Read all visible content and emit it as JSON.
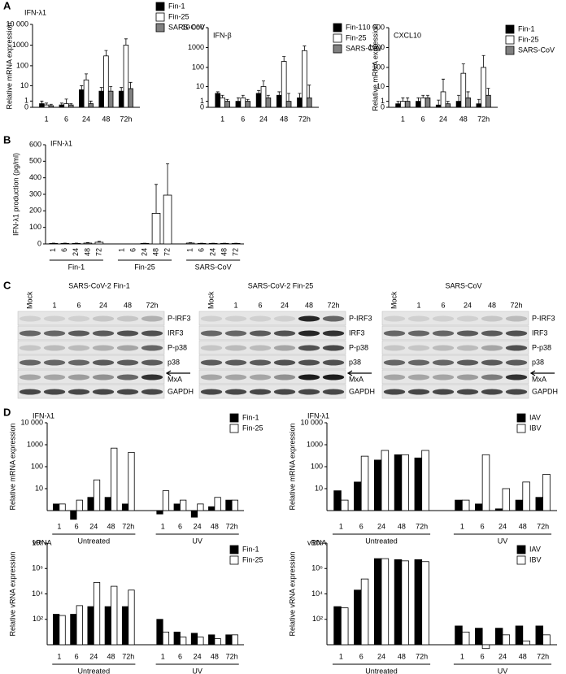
{
  "panels": [
    "A",
    "B",
    "C",
    "D"
  ],
  "chart_data": [
    {
      "type": "bar",
      "title": "IFN-λ1",
      "ylabel": "Relative mRNA expression",
      "yscale": "symlog",
      "ylim": [
        0,
        10000
      ],
      "yticks": [
        0,
        1,
        10,
        100,
        1000,
        {
          "value": 10000,
          "label": "10 000"
        }
      ],
      "categories": [
        "1",
        "6",
        "24",
        "48",
        "72h"
      ],
      "series": [
        {
          "name": "Fin-1",
          "color": "#000000",
          "values": [
            0.5,
            0.3,
            6,
            5,
            5
          ],
          "errors": [
            0.5,
            0.3,
            4,
            3,
            3
          ]
        },
        {
          "name": "Fin-25",
          "color": "#ffffff",
          "values": [
            0.3,
            0.5,
            20,
            300,
            1000
          ],
          "errors": [
            0.3,
            1,
            20,
            250,
            1000
          ]
        },
        {
          "name": "SARS-CoV",
          "color": "#808080",
          "values": [
            0.2,
            0.3,
            0.5,
            5,
            7
          ],
          "errors": [
            0.2,
            0.2,
            0.5,
            4,
            8
          ]
        }
      ]
    },
    {
      "type": "bar",
      "title": "IFN-β",
      "yscale": "symlog",
      "ylim": [
        0,
        10000
      ],
      "yticks": [
        0,
        1,
        10,
        100,
        1000,
        {
          "value": 10000,
          "label": "10 000"
        }
      ],
      "categories": [
        "1",
        "6",
        "24",
        "48",
        "72h"
      ],
      "series": [
        {
          "name": "Fin-1",
          "color": "#000000",
          "values": [
            4,
            1,
            4,
            3,
            2
          ],
          "errors": [
            1,
            1,
            2,
            2,
            2
          ]
        },
        {
          "name": "Fin-25",
          "color": "#ffffff",
          "values": [
            2,
            2,
            10,
            200,
            700
          ],
          "errors": [
            1,
            1,
            10,
            150,
            500
          ]
        },
        {
          "name": "SARS-CoV",
          "color": "#808080",
          "values": [
            1,
            1,
            2,
            1,
            2
          ],
          "errors": [
            0.5,
            0.5,
            1,
            3,
            10
          ]
        }
      ]
    },
    {
      "type": "bar",
      "title": "CXCL10",
      "ylabel": "Relative mRNA expression",
      "yscale": "symlog",
      "ylim": [
        0,
        10000
      ],
      "yticks": [
        0,
        1,
        10,
        100,
        1000,
        {
          "value": 10000,
          "label": "10 000"
        }
      ],
      "categories": [
        "1",
        "6",
        "24",
        "48",
        "72h"
      ],
      "series": [
        {
          "name": "Fin-1",
          "color": "#000000",
          "values": [
            0.5,
            1,
            0.3,
            1,
            0.5
          ],
          "errors": [
            0.5,
            1,
            1,
            2,
            1
          ]
        },
        {
          "name": "Fin-25",
          "color": "#ffffff",
          "values": [
            1,
            2,
            5,
            50,
            100
          ],
          "errors": [
            1,
            1,
            20,
            100,
            300
          ]
        },
        {
          "name": "SARS-CoV",
          "color": "#808080",
          "values": [
            1,
            2,
            0.5,
            2,
            3
          ],
          "errors": [
            1,
            1,
            0.5,
            3,
            5
          ]
        }
      ]
    },
    {
      "type": "bar",
      "title": "IFN-λ1",
      "ylabel": "IFN-λ1 production (pg/ml)",
      "xlabel_rotation": 90,
      "ylim": [
        0,
        600
      ],
      "yticks": [
        0,
        100,
        200,
        300,
        400,
        500,
        600
      ],
      "categories": [
        [
          "1",
          "6",
          "24",
          "48",
          "72"
        ],
        [
          "1",
          "6",
          "24",
          "48",
          "72"
        ],
        [
          "1",
          "6",
          "24",
          "48",
          "72"
        ]
      ],
      "groups": [
        "Fin-1",
        "Fin-25",
        "SARS-CoV"
      ],
      "series": [
        {
          "color": "#ffffff",
          "values": [
            [
              3,
              3,
              3,
              5,
              10
            ],
            [
              0,
              0,
              3,
              185,
              295
            ],
            [
              5,
              3,
              3,
              3,
              3
            ]
          ],
          "errors": [
            [
              2,
              2,
              2,
              3,
              5
            ],
            [
              0,
              0,
              1,
              175,
              190
            ],
            [
              2,
              1,
              1,
              1,
              1
            ]
          ]
        }
      ]
    },
    {
      "type": "bar",
      "title": "IFN-λ1",
      "ylabel": "Relative mRNA expression",
      "yscale": "log",
      "ylim": [
        1,
        10000
      ],
      "yticks": [
        10,
        100,
        1000,
        {
          "value": 10000,
          "label": "10 000"
        }
      ],
      "categories": [
        [
          "1",
          "6",
          "24",
          "48",
          "72h"
        ],
        [
          "1",
          "6",
          "24",
          "48",
          "72h"
        ]
      ],
      "groups": [
        "Untreated",
        "UV"
      ],
      "series": [
        {
          "name": "Fin-1",
          "color": "#000000",
          "values": [
            [
              2,
              0.4,
              4,
              4,
              2
            ],
            [
              0.7,
              2,
              0.5,
              1.5,
              3
            ]
          ]
        },
        {
          "name": "Fin-25",
          "color": "#ffffff",
          "values": [
            [
              2,
              3,
              25,
              700,
              450
            ],
            [
              8,
              3,
              2,
              4,
              3
            ]
          ]
        }
      ]
    },
    {
      "type": "bar",
      "title": "IFN-λ1",
      "ylabel": "Relative mRNA expression",
      "yscale": "log",
      "ylim": [
        1,
        10000
      ],
      "yticks": [
        10,
        100,
        1000,
        {
          "value": 10000,
          "label": "10 000"
        }
      ],
      "categories": [
        [
          "1",
          "6",
          "24",
          "48",
          "72h"
        ],
        [
          "1",
          "6",
          "24",
          "48",
          "72h"
        ]
      ],
      "groups": [
        "Untreated",
        "UV"
      ],
      "series": [
        {
          "name": "IAV",
          "color": "#000000",
          "values": [
            [
              8,
              20,
              200,
              350,
              250
            ],
            [
              3,
              2,
              1.2,
              3,
              4
            ]
          ]
        },
        {
          "name": "IBV",
          "color": "#ffffff",
          "values": [
            [
              3,
              300,
              550,
              350,
              550
            ],
            [
              3,
              350,
              10,
              20,
              45
            ]
          ]
        }
      ]
    },
    {
      "type": "bar",
      "title": "vRNA",
      "ylabel": "Relative vRNA expression",
      "yscale": "log",
      "ylim": [
        1,
        100000000
      ],
      "yticks": [
        {
          "value": 100,
          "label": "10²"
        },
        {
          "value": 10000,
          "label": "10⁴"
        },
        {
          "value": 1000000,
          "label": "10⁶"
        },
        {
          "value": 100000000,
          "label": "10⁸"
        }
      ],
      "categories": [
        [
          "1",
          "6",
          "24",
          "48",
          "72h"
        ],
        [
          "1",
          "6",
          "24",
          "48",
          "72h"
        ]
      ],
      "groups": [
        "Untreated",
        "UV"
      ],
      "series": [
        {
          "name": "Fin-1",
          "color": "#000000",
          "values": [
            [
              250,
              250,
              1000,
              1000,
              1000
            ],
            [
              100,
              10,
              8,
              6,
              6
            ]
          ]
        },
        {
          "name": "Fin-25",
          "color": "#ffffff",
          "values": [
            [
              200,
              1200,
              80000,
              40000,
              20000
            ],
            [
              10,
              4,
              4,
              3,
              6
            ]
          ]
        }
      ]
    },
    {
      "type": "bar",
      "title": "vRNA",
      "ylabel": "Relative vRNA expression",
      "yscale": "log",
      "ylim": [
        1,
        100000000
      ],
      "yticks": [
        {
          "value": 100,
          "label": "10²"
        },
        {
          "value": 10000,
          "label": "10⁴"
        },
        {
          "value": 1000000,
          "label": "10⁶"
        },
        {
          "value": 100000000,
          "label": "10⁸"
        }
      ],
      "categories": [
        [
          "1",
          "6",
          "24",
          "48",
          "72h"
        ],
        [
          "1",
          "6",
          "24",
          "48",
          "72h"
        ]
      ],
      "groups": [
        "Untreated",
        "UV"
      ],
      "series": [
        {
          "name": "IAV",
          "color": "#000000",
          "values": [
            [
              1000,
              20000,
              6000000,
              5000000,
              5000000
            ],
            [
              30,
              20,
              20,
              30,
              30
            ]
          ]
        },
        {
          "name": "IBV",
          "color": "#ffffff",
          "values": [
            [
              800,
              150000,
              6000000,
              4000000,
              3500000
            ],
            [
              10,
              0.5,
              6,
              2,
              6
            ]
          ]
        }
      ]
    }
  ],
  "blots": [
    {
      "title": "SARS-CoV-2 Fin-1",
      "lanes": [
        "Mock",
        "1",
        "6",
        "24",
        "48",
        "72h"
      ],
      "rows": [
        "P-IRF3",
        "IRF3",
        "P-p38",
        "p38",
        "MxA",
        "GAPDH"
      ]
    },
    {
      "title": "SARS-CoV-2 Fin-25",
      "lanes": [
        "Mock",
        "1",
        "6",
        "24",
        "48",
        "72h"
      ],
      "rows": [
        "P-IRF3",
        "IRF3",
        "P-p38",
        "p38",
        "MxA",
        "GAPDH"
      ]
    },
    {
      "title": "SARS-CoV",
      "lanes": [
        "Mock",
        "1",
        "6",
        "24",
        "48",
        "72h"
      ],
      "rows": [
        "P-IRF3",
        "IRF3",
        "P-p38",
        "p38",
        "MxA",
        "GAPDH"
      ]
    }
  ]
}
